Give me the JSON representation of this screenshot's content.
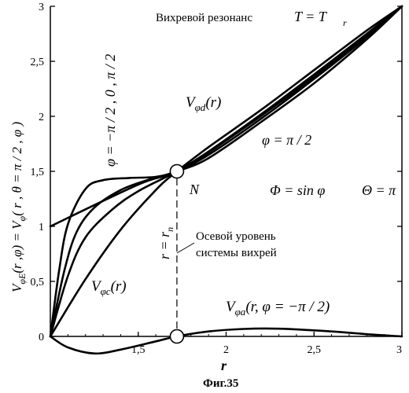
{
  "chart_data": {
    "type": "line",
    "title": "Вихревой резонанс",
    "title_condition": "T = T",
    "title_condition_sub": "r",
    "caption": "Фиг.35",
    "xlabel": "r",
    "ylabel": "V_φE(r,φ) = V_φ(r, θ = π/2, φ)",
    "xlim": [
      1,
      3
    ],
    "ylim": [
      0,
      3
    ],
    "x_ticks": [
      "1,5",
      "2",
      "2,5",
      "3"
    ],
    "y_ticks": [
      "0",
      "0,5",
      "1",
      "1,5",
      "2",
      "2,5",
      "3"
    ],
    "grid": false,
    "point_N": {
      "label": "N",
      "x": 1.72,
      "y": 1.5
    },
    "vertical_line_x": 1.72,
    "series": [
      {
        "name": "V_φd(r)",
        "points": [
          [
            1.0,
            1.0
          ],
          [
            1.5,
            1.38
          ],
          [
            1.72,
            1.5
          ],
          [
            2.0,
            1.78
          ],
          [
            2.5,
            2.36
          ],
          [
            3.0,
            3.0
          ]
        ]
      },
      {
        "name": "V_φc(r)",
        "points": [
          [
            1.0,
            0.0
          ],
          [
            1.2,
            0.52
          ],
          [
            1.4,
            0.97
          ],
          [
            1.6,
            1.33
          ],
          [
            1.72,
            1.5
          ],
          [
            1.9,
            1.72
          ],
          [
            2.2,
            2.06
          ],
          [
            2.5,
            2.42
          ],
          [
            2.8,
            2.78
          ],
          [
            3.0,
            3.0
          ]
        ]
      },
      {
        "name": "V_φa(r,φ=−π/2)",
        "points": [
          [
            1.0,
            0.0
          ],
          [
            1.1,
            -0.1
          ],
          [
            1.25,
            -0.155
          ],
          [
            1.4,
            -0.12
          ],
          [
            1.6,
            -0.045
          ],
          [
            1.72,
            0.0
          ],
          [
            1.9,
            0.045
          ],
          [
            2.1,
            0.068
          ],
          [
            2.3,
            0.07
          ],
          [
            2.6,
            0.045
          ],
          [
            2.8,
            0.02
          ],
          [
            3.0,
            0.0
          ]
        ]
      },
      {
        "name": "φ=π/2",
        "points": [
          [
            1.0,
            0.0
          ],
          [
            1.05,
            0.6
          ],
          [
            1.1,
            1.02
          ],
          [
            1.2,
            1.34
          ],
          [
            1.3,
            1.42
          ],
          [
            1.45,
            1.44
          ],
          [
            1.6,
            1.45
          ],
          [
            1.72,
            1.5
          ],
          [
            1.9,
            1.62
          ],
          [
            2.2,
            1.95
          ],
          [
            2.5,
            2.3
          ],
          [
            2.8,
            2.7
          ],
          [
            3.0,
            3.0
          ]
        ]
      },
      {
        "name": "φ=0",
        "points": [
          [
            1.0,
            0.0
          ],
          [
            1.08,
            0.6
          ],
          [
            1.15,
            0.95
          ],
          [
            1.25,
            1.17
          ],
          [
            1.4,
            1.33
          ],
          [
            1.55,
            1.42
          ],
          [
            1.72,
            1.5
          ],
          [
            1.9,
            1.65
          ],
          [
            2.2,
            1.98
          ],
          [
            2.5,
            2.34
          ],
          [
            2.8,
            2.72
          ],
          [
            3.0,
            3.0
          ]
        ]
      },
      {
        "name": "φ=−π/2 (upper)",
        "points": [
          [
            1.0,
            0.0
          ],
          [
            1.1,
            0.55
          ],
          [
            1.2,
            0.9
          ],
          [
            1.35,
            1.15
          ],
          [
            1.5,
            1.32
          ],
          [
            1.72,
            1.5
          ],
          [
            1.9,
            1.68
          ],
          [
            2.2,
            2.02
          ],
          [
            2.5,
            2.38
          ],
          [
            2.8,
            2.75
          ],
          [
            3.0,
            3.0
          ]
        ]
      }
    ]
  },
  "labels": {
    "vd_main": "V",
    "vd_sub": "φd",
    "vd_arg": "(r)",
    "vc_main": "V",
    "vc_sub": "φc",
    "vc_arg": "(r)",
    "va_main": "V",
    "va_sub": "φa",
    "va_arg": "(r, φ = −π / 2)",
    "phi_half_pi": "φ = π / 2",
    "phi_list": "φ = −π / 2 ,  0 ,  π / 2",
    "Phi_eq": "Φ = sin φ",
    "Theta_eq": "Θ = π",
    "r_eq_main": "r = r",
    "r_eq_sub": "n",
    "axis_level_line1": "Осевой уровень",
    "axis_level_line2": "системы вихрей",
    "ylabel_main": "V",
    "ylabel_sub": "φE",
    "ylabel_rest": "(r ,φ) = V",
    "ylabel_sub2": "φ",
    "ylabel_rest2": "( r ,  θ = π / 2 ,  φ )"
  }
}
